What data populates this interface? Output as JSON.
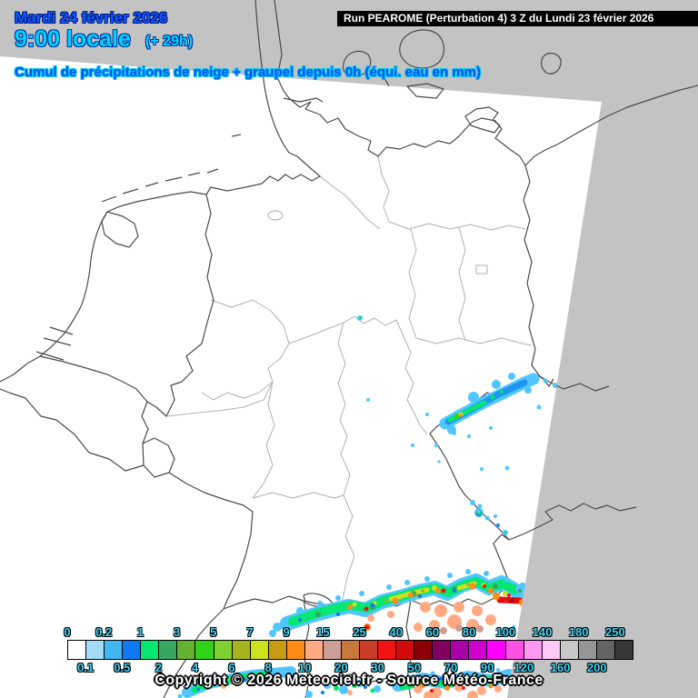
{
  "header": {
    "date_line": "Mardi 24 février 2026",
    "time_line": "9:00 locale",
    "offset_label": "(+ 29h)",
    "subtitle": "Cumul de précipitations de neige + graupel depuis 0h (équi. eau en mm)",
    "run_info": "Run PEAROME (Perturbation 4) 3 Z du Lundi 23 février 2026"
  },
  "footer": {
    "copyright": "Copyright © 2026 Meteociel.fr - Source Météo-France"
  },
  "colors": {
    "date_text": "#0a5aff",
    "time_text": "#00d2ff",
    "subtitle_text": "#0050ff",
    "run_banner_bg": "#000000",
    "run_banner_fg": "#ffffff",
    "out_of_domain_gray": "#c3c3c3",
    "land_white": "#ffffff",
    "country_border": "#4a4a4a",
    "region_border": "#b0b0b0",
    "legend_label": "#40d4f4"
  },
  "legend": {
    "unit": "mm (équivalent eau)",
    "cells": [
      {
        "label": "0",
        "color": "#ffffff"
      },
      {
        "label": "0.1",
        "color": "#a4dcf6"
      },
      {
        "label": "0.2",
        "color": "#41b6f1"
      },
      {
        "label": "0.5",
        "color": "#0f78f5"
      },
      {
        "label": "1",
        "color": "#05e673"
      },
      {
        "label": "2",
        "color": "#37a65f"
      },
      {
        "label": "3",
        "color": "#63b232"
      },
      {
        "label": "4",
        "color": "#32d216"
      },
      {
        "label": "5",
        "color": "#7dd232"
      },
      {
        "label": "6",
        "color": "#a5b41e"
      },
      {
        "label": "7",
        "color": "#cde11e"
      },
      {
        "label": "8",
        "color": "#c89b14"
      },
      {
        "label": "9",
        "color": "#ff8c14"
      },
      {
        "label": "10",
        "color": "#ffaa82"
      },
      {
        "label": "15",
        "color": "#cd9e96"
      },
      {
        "label": "20",
        "color": "#c8783c"
      },
      {
        "label": "25",
        "color": "#c83c28"
      },
      {
        "label": "30",
        "color": "#f01414"
      },
      {
        "label": "40",
        "color": "#d20a0a"
      },
      {
        "label": "50",
        "color": "#8c0005"
      },
      {
        "label": "60",
        "color": "#82005f"
      },
      {
        "label": "70",
        "color": "#aa00aa"
      },
      {
        "label": "80",
        "color": "#cd00cd"
      },
      {
        "label": "90",
        "color": "#ff00ff"
      },
      {
        "label": "100",
        "color": "#ff50e6"
      },
      {
        "label": "120",
        "color": "#ff96f0"
      },
      {
        "label": "140",
        "color": "#ffc8f7"
      },
      {
        "label": "160",
        "color": "#c8c8c8"
      },
      {
        "label": "180",
        "color": "#969696"
      },
      {
        "label": "200",
        "color": "#646464"
      },
      {
        "label": "250",
        "color": "#373737"
      }
    ]
  }
}
